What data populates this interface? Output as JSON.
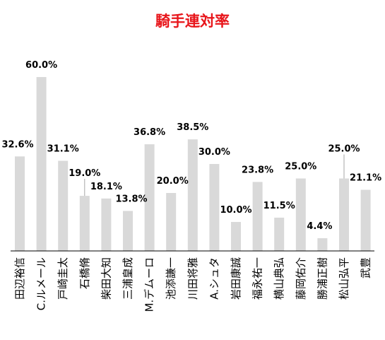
{
  "chart_data": {
    "type": "bar",
    "title": "騎手連対率",
    "categories": [
      "田辺裕信",
      "C.ルメール",
      "戸崎圭太",
      "石橋脩",
      "柴田大知",
      "三浦皇成",
      "M.デムーロ",
      "池添謙一",
      "川田将雅",
      "A.シュタ",
      "岩田康誠",
      "福永祐一",
      "横山典弘",
      "藤岡佑介",
      "勝浦正樹",
      "松山弘平",
      "武豊"
    ],
    "values": [
      32.6,
      60.0,
      31.1,
      19.0,
      18.1,
      13.8,
      36.8,
      20.0,
      38.5,
      30.0,
      10.0,
      23.8,
      11.5,
      25.0,
      4.4,
      25.0,
      21.1
    ],
    "labels": [
      "32.6%",
      "60.0%",
      "31.1%",
      "19.0%",
      "18.1%",
      "13.8%",
      "36.8%",
      "20.0%",
      "38.5%",
      "30.0%",
      "10.0%",
      "23.8%",
      "11.5%",
      "25.0%",
      "4.4%",
      "25.0%",
      "21.1%"
    ],
    "highlight_index": 1,
    "ylim": [
      0,
      60
    ],
    "grid": false,
    "legend": "none",
    "colors": {
      "bar": "#d9d9d9",
      "highlight_label": "#e8161b",
      "label": "#000000",
      "title": "#e8161b",
      "axis": "#000000"
    }
  }
}
